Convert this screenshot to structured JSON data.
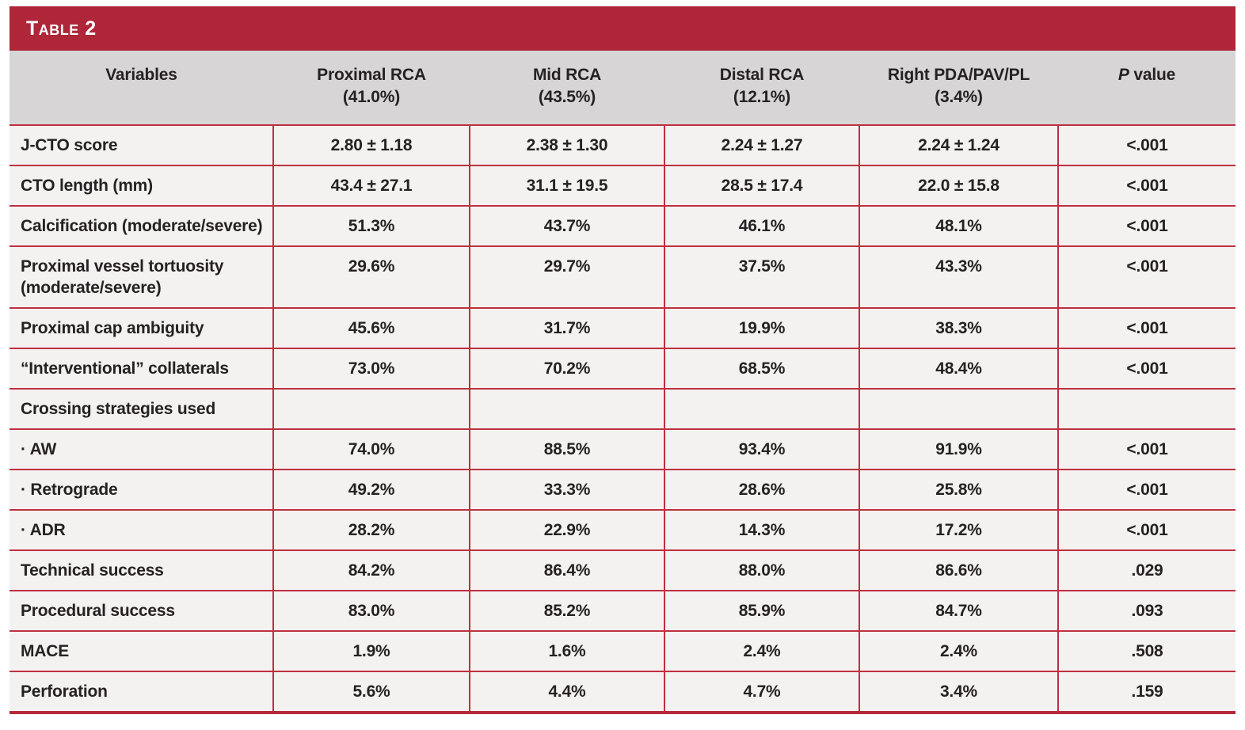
{
  "title": "Table 2",
  "colors": {
    "brand_red": "#AE2638",
    "grid_red": "#BE3040",
    "header_gray": "#D8D5D6",
    "row_bg": "#F4F1F1",
    "text_dark": "#262122",
    "title_text": "#FFFFFF"
  },
  "columns": [
    {
      "label": "Variables",
      "sublabel": ""
    },
    {
      "label": "Proximal RCA",
      "sublabel": "(41.0%)"
    },
    {
      "label": "Mid RCA",
      "sublabel": "(43.5%)"
    },
    {
      "label": "Distal RCA",
      "sublabel": "(12.1%)"
    },
    {
      "label": "Right PDA/PAV/PL",
      "sublabel": "(3.4%)"
    },
    {
      "label_italic": "P",
      "label_rest": " value",
      "sublabel": ""
    }
  ],
  "rows": [
    {
      "variable": "J-CTO score",
      "values": [
        "2.80 ± 1.18",
        "2.38 ± 1.30",
        "2.24 ± 1.27",
        "2.24 ± 1.24",
        "<.001"
      ]
    },
    {
      "variable": "CTO length (mm)",
      "values": [
        "43.4 ± 27.1",
        "31.1 ± 19.5",
        "28.5 ± 17.4",
        "22.0 ± 15.8",
        "<.001"
      ]
    },
    {
      "variable": "Calcification (moderate/severe)",
      "values": [
        "51.3%",
        "43.7%",
        "46.1%",
        "48.1%",
        "<.001"
      ]
    },
    {
      "variable": "Proximal vessel tortuosity (moderate/severe)",
      "values": [
        "29.6%",
        "29.7%",
        "37.5%",
        "43.3%",
        "<.001"
      ]
    },
    {
      "variable": "Proximal cap ambiguity",
      "values": [
        "45.6%",
        "31.7%",
        "19.9%",
        "38.3%",
        "<.001"
      ]
    },
    {
      "variable": "“Interventional” collaterals",
      "values": [
        "73.0%",
        "70.2%",
        "68.5%",
        "48.4%",
        "<.001"
      ]
    },
    {
      "variable": "Crossing strategies used",
      "values": [
        "",
        "",
        "",
        "",
        ""
      ]
    },
    {
      "variable": "· AW",
      "values": [
        "74.0%",
        "88.5%",
        "93.4%",
        "91.9%",
        "<.001"
      ]
    },
    {
      "variable": "· Retrograde",
      "values": [
        "49.2%",
        "33.3%",
        "28.6%",
        "25.8%",
        "<.001"
      ]
    },
    {
      "variable": "· ADR",
      "values": [
        "28.2%",
        "22.9%",
        "14.3%",
        "17.2%",
        "<.001"
      ]
    },
    {
      "variable": "Technical success",
      "values": [
        "84.2%",
        "86.4%",
        "88.0%",
        "86.6%",
        ".029"
      ]
    },
    {
      "variable": "Procedural success",
      "values": [
        "83.0%",
        "85.2%",
        "85.9%",
        "84.7%",
        ".093"
      ]
    },
    {
      "variable": "MACE",
      "values": [
        "1.9%",
        "1.6%",
        "2.4%",
        "2.4%",
        ".508"
      ]
    },
    {
      "variable": "Perforation",
      "values": [
        "5.6%",
        "4.4%",
        "4.7%",
        "3.4%",
        ".159"
      ]
    }
  ]
}
